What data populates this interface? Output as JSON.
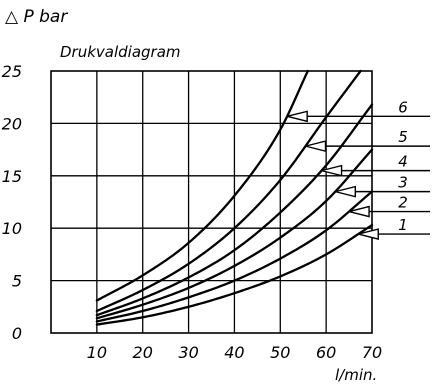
{
  "chart_data": {
    "type": "line",
    "title": "Drukvaldiagram",
    "ylabel": "P bar",
    "ylabel_symbol": "△",
    "xlabel": "l/min.",
    "xlim": [
      0,
      70
    ],
    "ylim": [
      0,
      25
    ],
    "x_ticks": [
      "10",
      "20",
      "30",
      "40",
      "50",
      "60",
      "70"
    ],
    "y_ticks": [
      "0",
      "5",
      "10",
      "15",
      "20",
      "25"
    ],
    "grid": true,
    "series": [
      {
        "name": "1",
        "x": [
          10,
          20,
          30,
          40,
          50,
          60,
          70
        ],
        "y": [
          0.8,
          1.5,
          2.5,
          3.8,
          5.4,
          7.5,
          10.3
        ]
      },
      {
        "name": "2",
        "x": [
          10,
          20,
          30,
          40,
          50,
          60,
          70
        ],
        "y": [
          1.1,
          2.1,
          3.4,
          5.0,
          7.1,
          9.8,
          13.5
        ]
      },
      {
        "name": "3",
        "x": [
          10,
          20,
          30,
          40,
          50,
          60,
          70
        ],
        "y": [
          1.4,
          2.7,
          4.3,
          6.4,
          9.1,
          12.6,
          17.5
        ]
      },
      {
        "name": "4",
        "x": [
          10,
          20,
          30,
          40,
          50,
          60,
          70
        ],
        "y": [
          1.7,
          3.3,
          5.3,
          7.9,
          11.5,
          16.0,
          21.8
        ]
      },
      {
        "name": "5",
        "x": [
          10,
          20,
          30,
          40,
          50,
          60,
          67.5
        ],
        "y": [
          2.1,
          4.1,
          6.6,
          10.0,
          14.6,
          20.6,
          25.0
        ]
      },
      {
        "name": "6",
        "x": [
          10,
          20,
          30,
          40,
          50,
          56
        ],
        "y": [
          3.1,
          5.5,
          8.6,
          13.1,
          19.4,
          25.0
        ]
      }
    ],
    "annotations": [
      {
        "label": "6",
        "series": "6",
        "arrow_x": 51.5
      },
      {
        "label": "5",
        "series": "5",
        "arrow_x": 55.5
      },
      {
        "label": "4",
        "series": "4",
        "arrow_x": 59.0
      },
      {
        "label": "3",
        "series": "3",
        "arrow_x": 62.0
      },
      {
        "label": "2",
        "series": "2",
        "arrow_x": 65.0
      },
      {
        "label": "1",
        "series": "1",
        "arrow_x": 67.0
      }
    ]
  }
}
